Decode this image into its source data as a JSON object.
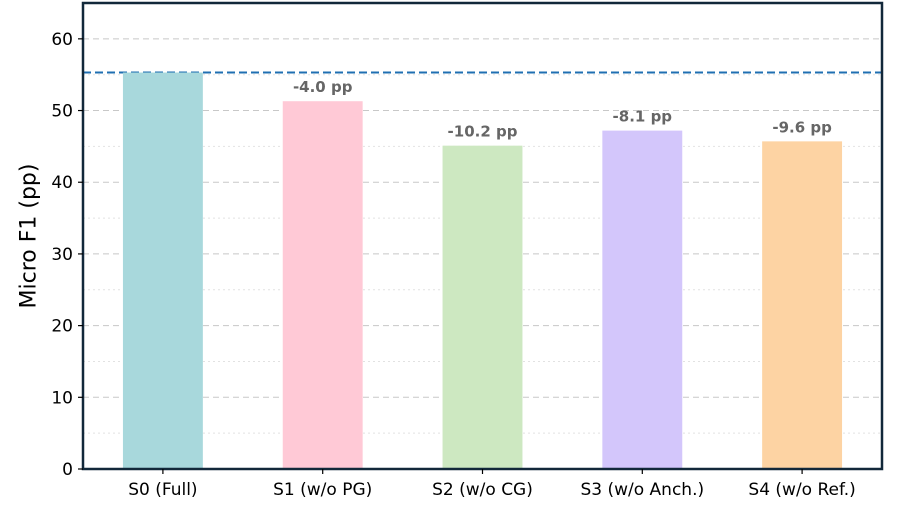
{
  "chart_data": {
    "type": "bar",
    "title": "",
    "xlabel": "",
    "ylabel": "Micro F1 (pp)",
    "categories": [
      "S0 (Full)",
      "S1 (w/o PG)",
      "S2 (w/o CG)",
      "S3 (w/o Anch.)",
      "S4 (w/o Ref.)"
    ],
    "values": [
      55.3,
      51.3,
      45.1,
      47.2,
      45.7
    ],
    "annotations": [
      "",
      "-4.0 pp",
      "-10.2 pp",
      "-8.1 pp",
      "-9.6 pp"
    ],
    "colors": [
      "#a8d8dc",
      "#ffc9d6",
      "#cde8c1",
      "#d3c6fb",
      "#fdd3a3"
    ],
    "annotation_color": "#666666",
    "reference_line": {
      "value": 55.3,
      "style": "dashed",
      "color": "#1f6fb2"
    },
    "yticks": [
      0,
      10,
      20,
      30,
      40,
      50,
      60
    ],
    "ylim": [
      0,
      65
    ],
    "grid": {
      "major": true,
      "minor": true,
      "axis": "y",
      "style": "dashed"
    },
    "frame_color": "#12283a"
  }
}
